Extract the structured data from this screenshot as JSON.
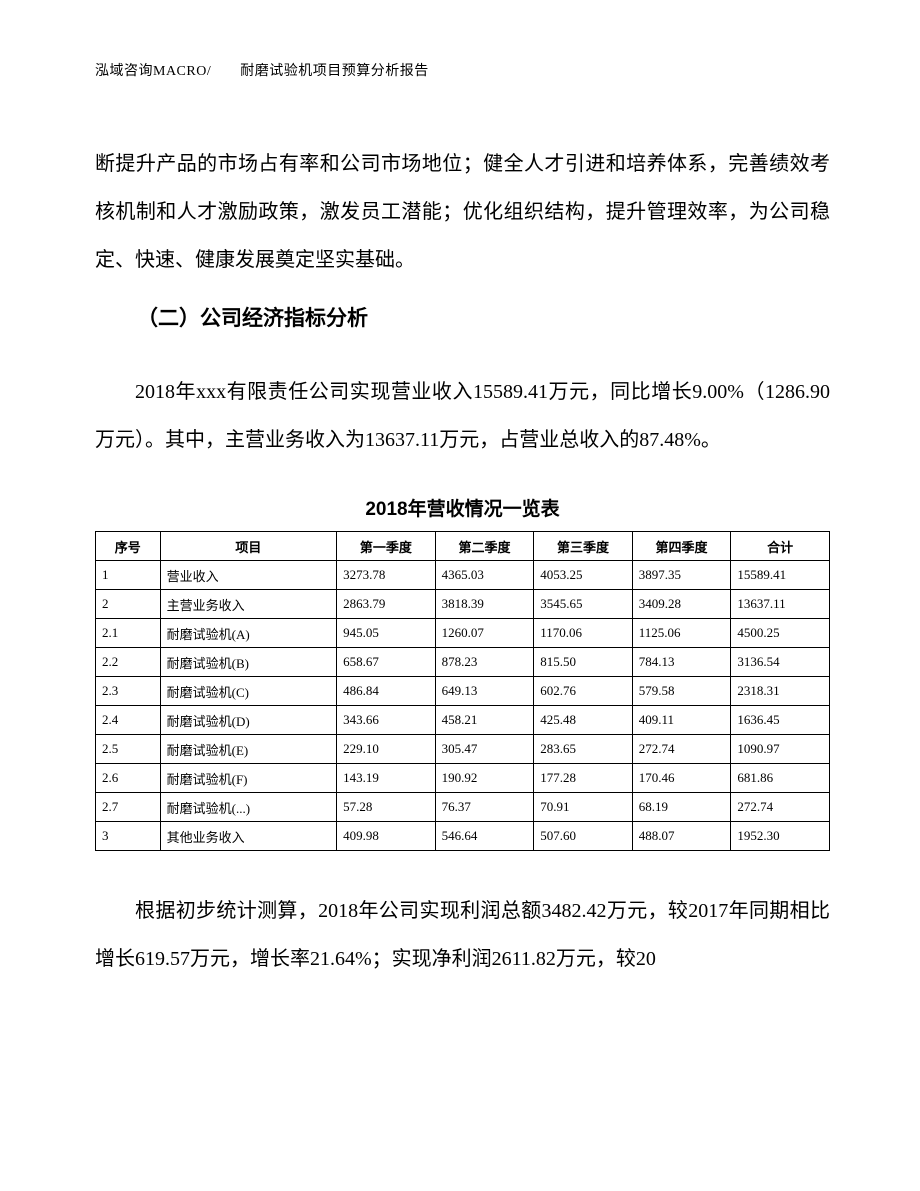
{
  "header": "泓域咨询MACRO/　　耐磨试验机项目预算分析报告",
  "para1": "断提升产品的市场占有率和公司市场地位；健全人才引进和培养体系，完善绩效考核机制和人才激励政策，激发员工潜能；优化组织结构，提升管理效率，为公司稳定、快速、健康发展奠定坚实基础。",
  "section_title": "（二）公司经济指标分析",
  "para2": "2018年xxx有限责任公司实现营业收入15589.41万元，同比增长9.00%（1286.90万元）。其中，主营业务收入为13637.11万元，占营业总收入的87.48%。",
  "table_title": "2018年营收情况一览表",
  "table": {
    "columns": [
      "序号",
      "项目",
      "第一季度",
      "第二季度",
      "第三季度",
      "第四季度",
      "合计"
    ],
    "rows": [
      [
        "1",
        "营业收入",
        "3273.78",
        "4365.03",
        "4053.25",
        "3897.35",
        "15589.41"
      ],
      [
        "2",
        "主营业务收入",
        "2863.79",
        "3818.39",
        "3545.65",
        "3409.28",
        "13637.11"
      ],
      [
        "2.1",
        "耐磨试验机(A)",
        "945.05",
        "1260.07",
        "1170.06",
        "1125.06",
        "4500.25"
      ],
      [
        "2.2",
        "耐磨试验机(B)",
        "658.67",
        "878.23",
        "815.50",
        "784.13",
        "3136.54"
      ],
      [
        "2.3",
        "耐磨试验机(C)",
        "486.84",
        "649.13",
        "602.76",
        "579.58",
        "2318.31"
      ],
      [
        "2.4",
        "耐磨试验机(D)",
        "343.66",
        "458.21",
        "425.48",
        "409.11",
        "1636.45"
      ],
      [
        "2.5",
        "耐磨试验机(E)",
        "229.10",
        "305.47",
        "283.65",
        "272.74",
        "1090.97"
      ],
      [
        "2.6",
        "耐磨试验机(F)",
        "143.19",
        "190.92",
        "177.28",
        "170.46",
        "681.86"
      ],
      [
        "2.7",
        "耐磨试验机(...)",
        "57.28",
        "76.37",
        "70.91",
        "68.19",
        "272.74"
      ],
      [
        "3",
        "其他业务收入",
        "409.98",
        "546.64",
        "507.60",
        "488.07",
        "1952.30"
      ]
    ]
  },
  "para3": "根据初步统计测算，2018年公司实现利润总额3482.42万元，较2017年同期相比增长619.57万元，增长率21.64%；实现净利润2611.82万元，较20"
}
